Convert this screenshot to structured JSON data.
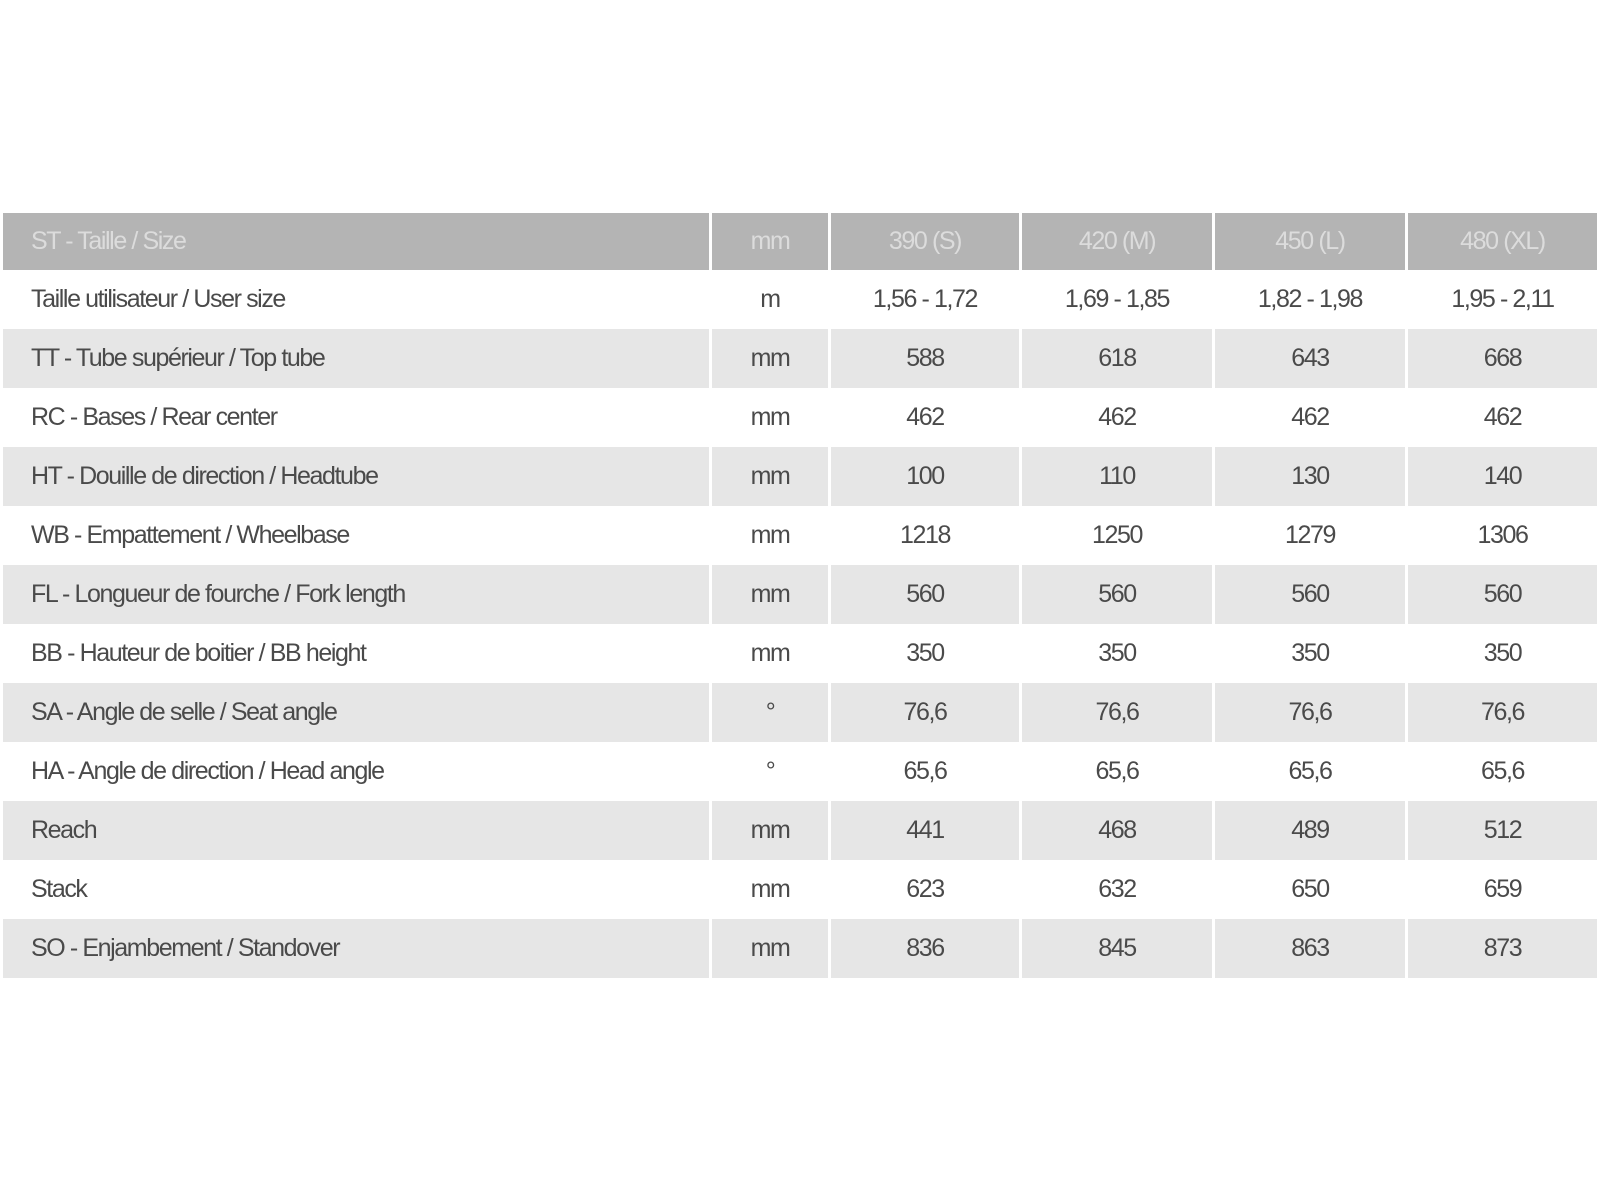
{
  "header": [
    "ST - Taille / Size",
    "mm",
    "390 (S)",
    "420 (M)",
    "450 (L)",
    "480 (XL)"
  ],
  "rows": [
    [
      "Taille utilisateur / User size",
      "m",
      "1,56 - 1,72",
      "1,69 - 1,85",
      "1,82 - 1,98",
      "1,95 - 2,11"
    ],
    [
      "TT - Tube supérieur / Top tube",
      "mm",
      "588",
      "618",
      "643",
      "668"
    ],
    [
      "RC - Bases / Rear center",
      "mm",
      "462",
      "462",
      "462",
      "462"
    ],
    [
      "HT - Douille de direction / Headtube",
      "mm",
      "100",
      "110",
      "130",
      "140"
    ],
    [
      "WB - Empattement / Wheelbase",
      "mm",
      "1218",
      "1250",
      "1279",
      "1306"
    ],
    [
      "FL - Longueur de fourche / Fork length",
      "mm",
      "560",
      "560",
      "560",
      "560"
    ],
    [
      "BB - Hauteur de boitier / BB height",
      "mm",
      "350",
      "350",
      "350",
      "350"
    ],
    [
      "SA - Angle de selle / Seat angle",
      "°",
      "76,6",
      "76,6",
      "76,6",
      "76,6"
    ],
    [
      "HA - Angle de direction / Head angle",
      "°",
      "65,6",
      "65,6",
      "65,6",
      "65,6"
    ],
    [
      "Reach",
      "mm",
      "441",
      "468",
      "489",
      "512"
    ],
    [
      "Stack",
      "mm",
      "623",
      "632",
      "650",
      "659"
    ],
    [
      "SO - Enjambement / Standover",
      "mm",
      "836",
      "845",
      "863",
      "873"
    ]
  ],
  "colors": {
    "header_bg": "#b4b4b4",
    "header_text": "#dcdcdc",
    "stripe": "#e6e6e6",
    "text": "#4a4a4a"
  }
}
